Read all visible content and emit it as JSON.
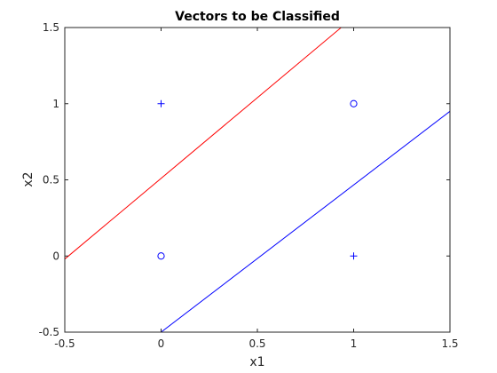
{
  "chart_data": {
    "type": "scatter",
    "title": "Vectors to be Classified",
    "xlabel": "x1",
    "ylabel": "x2",
    "xlim": [
      -0.5,
      1.5
    ],
    "ylim": [
      -0.5,
      1.5
    ],
    "xticks": [
      -0.5,
      0,
      0.5,
      1,
      1.5
    ],
    "xtick_labels": [
      "-0.5",
      "0",
      "0.5",
      "1",
      "1.5"
    ],
    "yticks": [
      -0.5,
      0,
      0.5,
      1,
      1.5
    ],
    "ytick_labels": [
      "-0.5",
      "0",
      "0.5",
      "1",
      "1.5"
    ],
    "grid": false,
    "series": [
      {
        "marker": "plus",
        "color": "#0000ff",
        "points": [
          [
            0,
            1
          ],
          [
            1,
            0
          ]
        ]
      },
      {
        "marker": "circle",
        "color": "#0000ff",
        "points": [
          [
            0,
            0
          ],
          [
            1,
            1
          ]
        ]
      }
    ],
    "lines": [
      {
        "color": "#ff0000",
        "x": [
          -0.5,
          0.935
        ],
        "y": [
          -0.02,
          1.5
        ]
      },
      {
        "color": "#0000ff",
        "x": [
          0,
          1.5
        ],
        "y": [
          -0.5,
          0.95
        ]
      }
    ]
  }
}
